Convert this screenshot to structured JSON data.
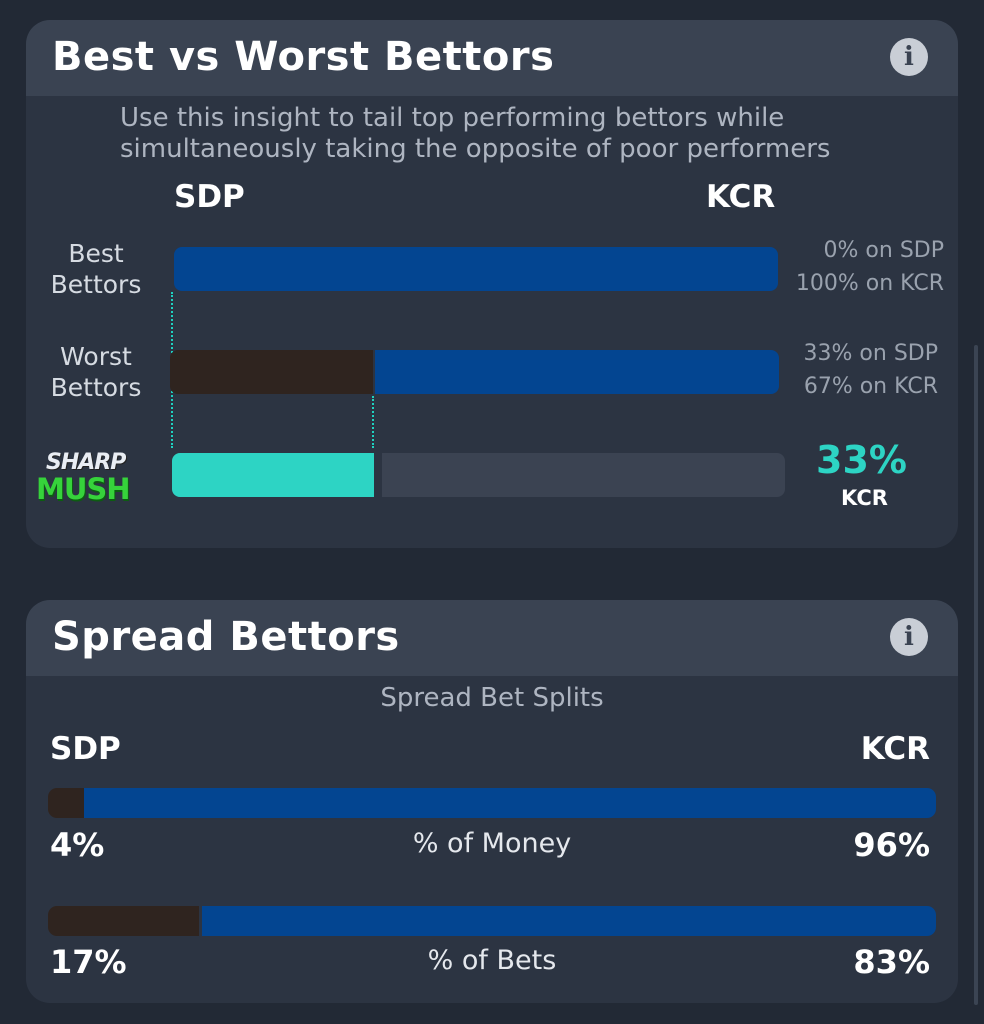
{
  "best_worst": {
    "title": "Best vs Worst Bettors",
    "description_line1": "Use this insight to tail top performing bettors while",
    "description_line2": "simultaneously taking the opposite of poor performers",
    "team_left": "SDP",
    "team_right": "KCR",
    "rows": [
      {
        "label_line1": "Best",
        "label_line2": "Bettors",
        "sdp_pct": 0,
        "kcr_pct": 100,
        "sdp_text": "0% on SDP",
        "kcr_text": "100% on KCR"
      },
      {
        "label_line1": "Worst",
        "label_line2": "Bettors",
        "sdp_pct": 33,
        "kcr_pct": 67,
        "sdp_text": "33% on SDP",
        "kcr_text": "67% on KCR"
      }
    ],
    "sharp_mush": {
      "logo_top": "SHARP",
      "logo_bottom": "MUSH",
      "fill_pct": 33,
      "value": "33%",
      "team": "KCR"
    }
  },
  "spread": {
    "title": "Spread Bettors",
    "subtitle": "Spread Bet Splits",
    "team_left": "SDP",
    "team_right": "KCR",
    "rows": [
      {
        "label": "% of Money",
        "sdp_pct": 4,
        "kcr_pct": 96,
        "sdp_text": "4%",
        "kcr_text": "96%"
      },
      {
        "label": "% of Bets",
        "sdp_pct": 17,
        "kcr_pct": 83,
        "sdp_text": "17%",
        "kcr_text": "83%"
      }
    ]
  },
  "colors": {
    "sdp": "#2f241f",
    "kcr": "#034591",
    "accent": "#2dd4c4",
    "track": "#3b4352"
  },
  "icons": [
    "info-icon",
    "sharp-mush-logo"
  ]
}
